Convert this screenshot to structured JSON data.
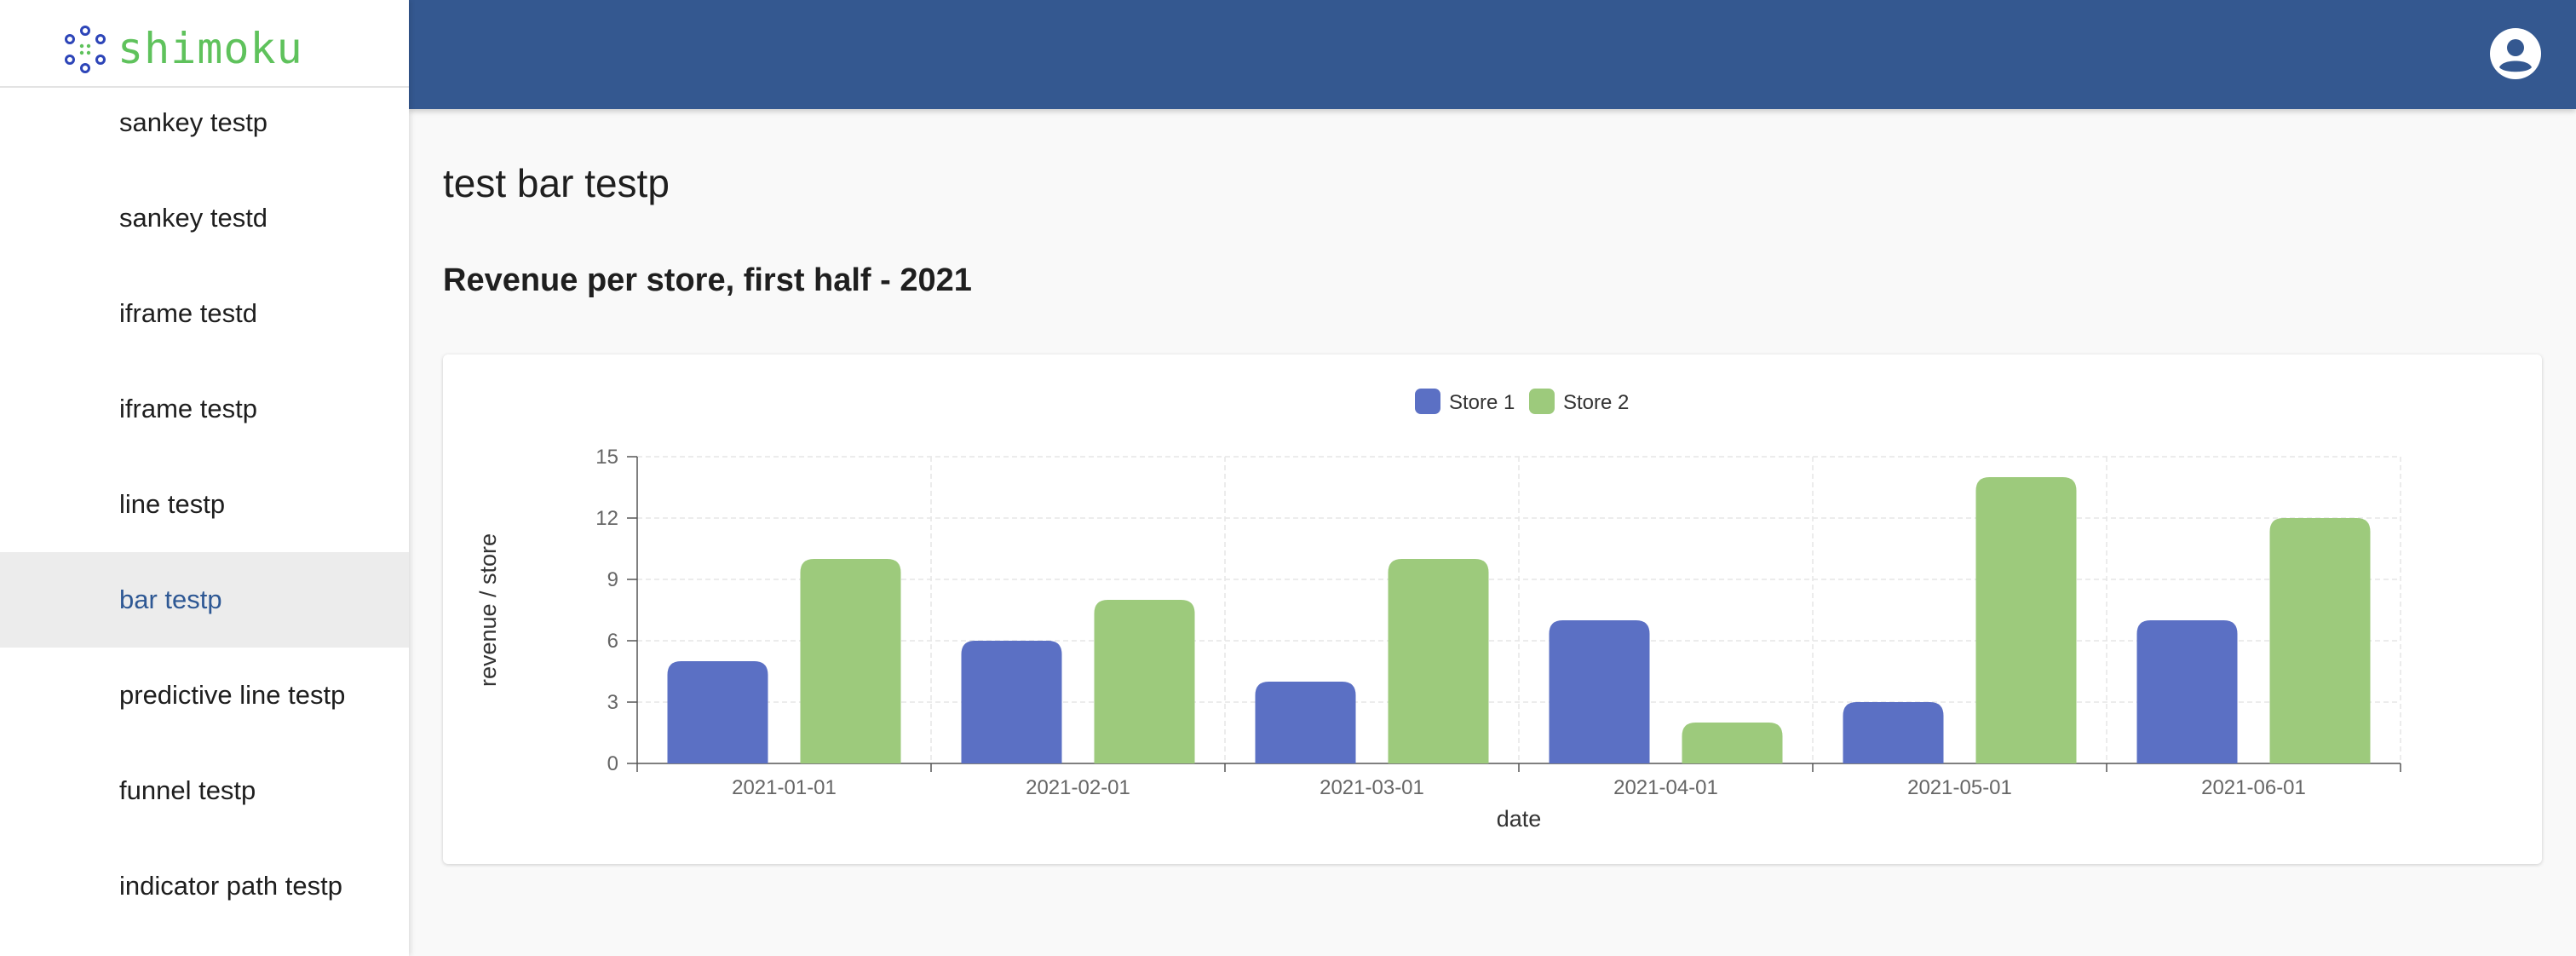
{
  "brand": {
    "name": "shimoku",
    "color": "#5fc25c"
  },
  "sidebar": {
    "items": [
      {
        "label": "sankey testp",
        "active": false
      },
      {
        "label": "sankey testd",
        "active": false
      },
      {
        "label": "iframe testd",
        "active": false
      },
      {
        "label": "iframe testp",
        "active": false
      },
      {
        "label": "line testp",
        "active": false
      },
      {
        "label": "bar testp",
        "active": true
      },
      {
        "label": "predictive line testp",
        "active": false
      },
      {
        "label": "funnel testp",
        "active": false
      },
      {
        "label": "indicator path testp",
        "active": false
      }
    ]
  },
  "topbar": {
    "color": "#345890",
    "account_icon": "account-circle-icon"
  },
  "main": {
    "page_title": "test bar testp",
    "chart_title": "Revenue per store, first half - 2021"
  },
  "chart_data": {
    "type": "bar",
    "title": "Revenue per store, first half - 2021",
    "xlabel": "date",
    "ylabel": "revenue / store",
    "categories": [
      "2021-01-01",
      "2021-02-01",
      "2021-03-01",
      "2021-04-01",
      "2021-05-01",
      "2021-06-01"
    ],
    "series": [
      {
        "name": "Store 1",
        "color": "#5b70c4",
        "values": [
          5,
          6,
          4,
          7,
          3,
          7
        ]
      },
      {
        "name": "Store 2",
        "color": "#9dca7c",
        "values": [
          10,
          8,
          10,
          2,
          14,
          12
        ]
      }
    ],
    "ylim": [
      0,
      15
    ],
    "yticks": [
      0,
      3,
      6,
      9,
      12,
      15
    ],
    "grid": true,
    "legend": "top-center"
  }
}
